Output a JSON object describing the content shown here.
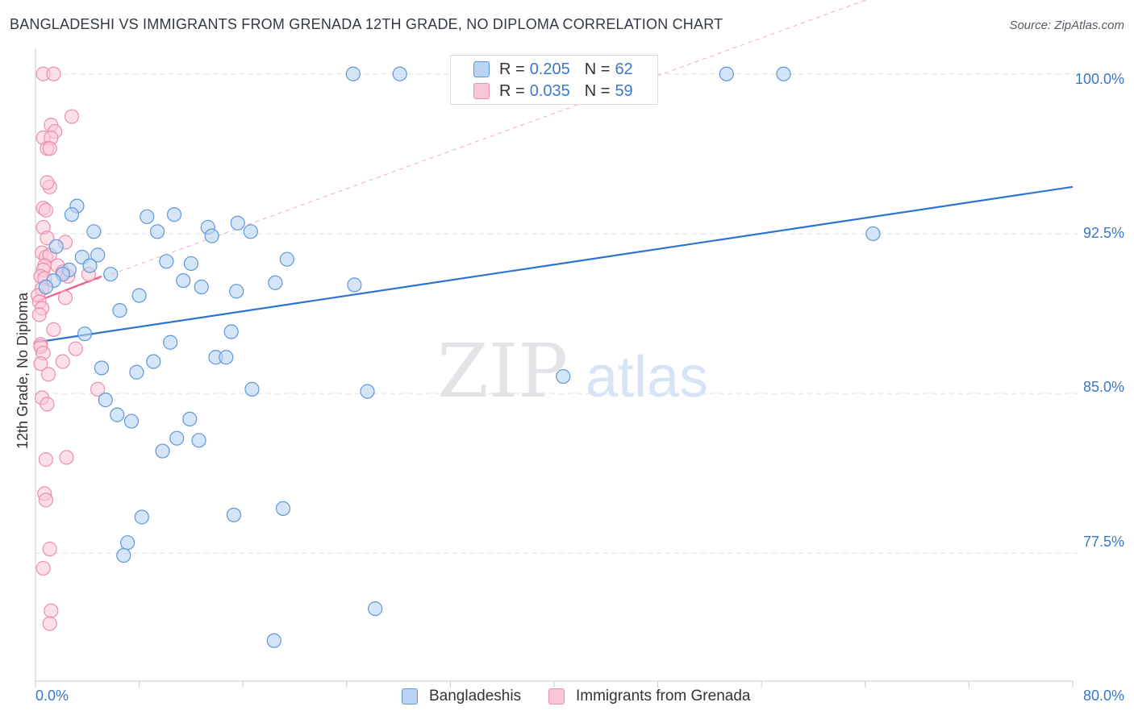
{
  "title": "BANGLADESHI VS IMMIGRANTS FROM GRENADA 12TH GRADE, NO DIPLOMA CORRELATION CHART",
  "source": "Source: ZipAtlas.com",
  "watermark": {
    "zip": "ZIP",
    "atlas": "atlas"
  },
  "colors": {
    "blue_fill": "#b9d3f3",
    "blue_stroke": "#5f97d8",
    "blue_line": "#2e74cf",
    "pink_fill": "#f9c6d6",
    "pink_stroke": "#ec8fad",
    "pink_line": "#e8608e",
    "value_text": "#3b78c9",
    "grid": "#dcdfe4"
  },
  "legend": {
    "items": [
      {
        "r_label": "R =",
        "r_value": "0.205",
        "n_label": "N =",
        "n_value": "62"
      },
      {
        "r_label": "R =",
        "r_value": "0.035",
        "n_label": "N =",
        "n_value": "59"
      }
    ]
  },
  "bottom_legend": {
    "series1": "Bangladeshis",
    "series2": "Immigrants from Grenada"
  },
  "chart_data": {
    "type": "scatter",
    "title": "BANGLADESHI VS IMMIGRANTS FROM GRENADA 12TH GRADE, NO DIPLOMA CORRELATION CHART",
    "xlabel": "",
    "ylabel": "12th Grade, No Diploma",
    "xlim": [
      0,
      80
    ],
    "ylim": [
      71.5,
      101.2
    ],
    "x_tick_labels": [
      "0.0%",
      "80.0%"
    ],
    "y_ticks": [
      100.0,
      92.5,
      85.0,
      77.5
    ],
    "y_tick_labels": [
      "100.0%",
      "92.5%",
      "85.0%",
      "77.5%"
    ],
    "grid": true,
    "series": [
      {
        "name": "Bangladeshis",
        "trend": {
          "x": [
            0,
            80
          ],
          "y": [
            87.4,
            94.7
          ]
        },
        "points": [
          [
            24.5,
            100.0
          ],
          [
            28.1,
            100.0
          ],
          [
            53.3,
            100.0
          ],
          [
            57.7,
            100.0
          ],
          [
            3.2,
            93.8
          ],
          [
            2.8,
            93.4
          ],
          [
            8.6,
            93.3
          ],
          [
            10.7,
            93.4
          ],
          [
            4.5,
            92.6
          ],
          [
            9.4,
            92.6
          ],
          [
            13.3,
            92.8
          ],
          [
            13.6,
            92.4
          ],
          [
            15.6,
            93.0
          ],
          [
            16.6,
            92.6
          ],
          [
            64.6,
            92.5
          ],
          [
            1.6,
            91.9
          ],
          [
            3.6,
            91.4
          ],
          [
            4.8,
            91.5
          ],
          [
            10.1,
            91.2
          ],
          [
            12.0,
            91.1
          ],
          [
            19.4,
            91.3
          ],
          [
            2.6,
            90.8
          ],
          [
            2.1,
            90.6
          ],
          [
            1.4,
            90.3
          ],
          [
            4.2,
            91.0
          ],
          [
            5.8,
            90.6
          ],
          [
            11.4,
            90.3
          ],
          [
            18.5,
            90.2
          ],
          [
            24.6,
            90.1
          ],
          [
            0.8,
            90.0
          ],
          [
            8.0,
            89.6
          ],
          [
            12.8,
            90.0
          ],
          [
            15.5,
            89.8
          ],
          [
            6.5,
            88.9
          ],
          [
            3.8,
            87.8
          ],
          [
            15.1,
            87.9
          ],
          [
            10.4,
            87.4
          ],
          [
            5.1,
            86.2
          ],
          [
            13.9,
            86.7
          ],
          [
            14.7,
            86.7
          ],
          [
            7.8,
            86.0
          ],
          [
            9.1,
            86.5
          ],
          [
            40.7,
            85.8
          ],
          [
            16.7,
            85.2
          ],
          [
            25.6,
            85.1
          ],
          [
            5.4,
            84.7
          ],
          [
            6.3,
            84.0
          ],
          [
            7.4,
            83.7
          ],
          [
            11.9,
            83.8
          ],
          [
            10.9,
            82.9
          ],
          [
            12.6,
            82.8
          ],
          [
            9.8,
            82.3
          ],
          [
            8.2,
            79.2
          ],
          [
            15.3,
            79.3
          ],
          [
            19.1,
            79.6
          ],
          [
            7.1,
            78.0
          ],
          [
            6.8,
            77.4
          ],
          [
            26.2,
            74.9
          ],
          [
            18.4,
            73.4
          ]
        ]
      },
      {
        "name": "Immigrants from Grenada",
        "trend": {
          "x": [
            0,
            5.1
          ],
          "y": [
            89.3,
            90.5
          ]
        },
        "trend_ext": {
          "x": [
            0,
            80
          ],
          "y": [
            89.3,
            107.0
          ]
        },
        "points": [
          [
            0.6,
            100.0
          ],
          [
            1.4,
            100.0
          ],
          [
            2.8,
            98.0
          ],
          [
            1.2,
            97.6
          ],
          [
            1.5,
            97.3
          ],
          [
            0.6,
            97.0
          ],
          [
            1.2,
            97.0
          ],
          [
            0.9,
            96.5
          ],
          [
            1.1,
            96.5
          ],
          [
            1.1,
            94.7
          ],
          [
            0.9,
            94.9
          ],
          [
            0.6,
            93.7
          ],
          [
            0.8,
            93.6
          ],
          [
            0.6,
            92.8
          ],
          [
            0.9,
            92.3
          ],
          [
            2.3,
            92.1
          ],
          [
            0.5,
            91.6
          ],
          [
            0.8,
            91.4
          ],
          [
            1.1,
            91.5
          ],
          [
            0.7,
            91.0
          ],
          [
            1.7,
            91.0
          ],
          [
            0.6,
            90.8
          ],
          [
            2.1,
            90.7
          ],
          [
            0.4,
            90.5
          ],
          [
            0.7,
            90.4
          ],
          [
            2.5,
            90.5
          ],
          [
            4.1,
            90.6
          ],
          [
            0.5,
            89.9
          ],
          [
            0.2,
            89.6
          ],
          [
            2.3,
            89.5
          ],
          [
            0.3,
            89.3
          ],
          [
            0.5,
            89.0
          ],
          [
            0.3,
            88.7
          ],
          [
            1.4,
            88.0
          ],
          [
            0.4,
            87.3
          ],
          [
            0.4,
            87.2
          ],
          [
            0.6,
            86.9
          ],
          [
            3.1,
            87.1
          ],
          [
            2.1,
            86.5
          ],
          [
            0.4,
            86.4
          ],
          [
            1.0,
            85.9
          ],
          [
            4.8,
            85.2
          ],
          [
            0.5,
            84.8
          ],
          [
            0.9,
            84.5
          ],
          [
            0.8,
            81.9
          ],
          [
            2.4,
            82.0
          ],
          [
            0.7,
            80.3
          ],
          [
            0.8,
            80.0
          ],
          [
            1.1,
            77.7
          ],
          [
            0.6,
            76.8
          ],
          [
            1.2,
            74.8
          ],
          [
            1.1,
            74.2
          ]
        ]
      }
    ]
  }
}
